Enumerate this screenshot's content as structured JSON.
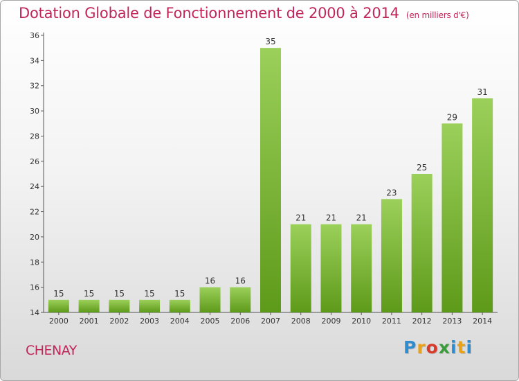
{
  "title": "Dotation Globale de Fonctionnement de 2000 à 2014",
  "unit_label": "(en milliers d'€)",
  "commune": "CHENAY",
  "logo": "Proxiti",
  "colors": {
    "title": "#c0265a",
    "bar_top": "#9bd05a",
    "bar_bottom": "#5e9a1a"
  },
  "chart_data": {
    "type": "bar",
    "categories": [
      "2000",
      "2001",
      "2002",
      "2003",
      "2004",
      "2005",
      "2006",
      "2007",
      "2008",
      "2009",
      "2010",
      "2011",
      "2012",
      "2013",
      "2014"
    ],
    "values": [
      15,
      15,
      15,
      15,
      15,
      16,
      16,
      35,
      21,
      21,
      21,
      23,
      25,
      29,
      31
    ],
    "ylim": [
      14,
      36
    ],
    "yticks": [
      14,
      16,
      18,
      20,
      22,
      24,
      26,
      28,
      30,
      32,
      34,
      36
    ],
    "grid": false,
    "data_labels": true
  }
}
